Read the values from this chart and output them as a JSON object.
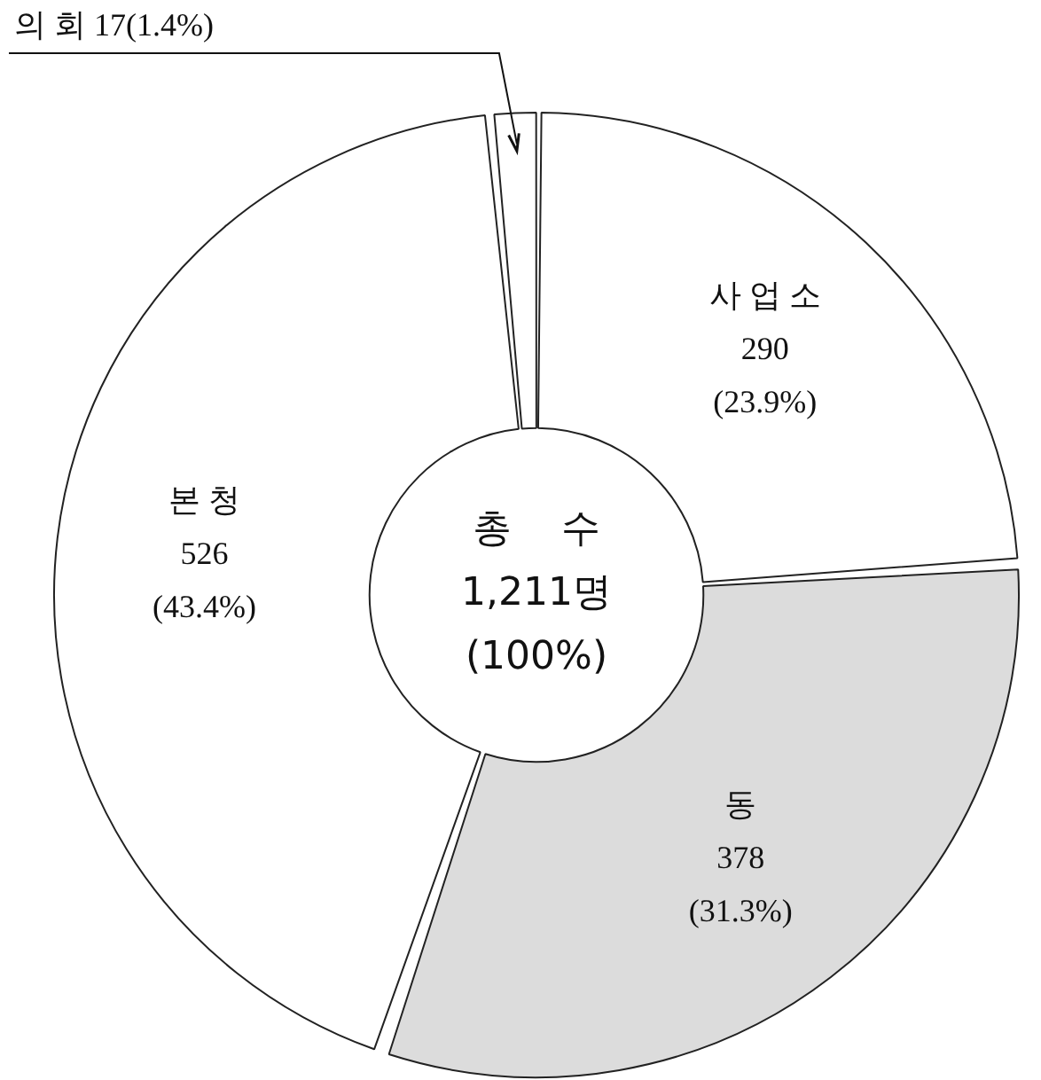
{
  "chart_data": {
    "type": "donut",
    "categories": [
      "사 업 소",
      "동",
      "본 청",
      "의 회"
    ],
    "values": [
      290,
      378,
      526,
      17
    ],
    "colors": [
      "#ffffff",
      "#dcdcdc",
      "#ffffff",
      "#ffffff"
    ],
    "value_labels": [
      "290\n(23.9%)",
      "378\n(31.3%)",
      "526\n(43.4%)",
      "17(1.4%)"
    ],
    "annotations": [
      "총    수",
      "1,211명",
      "(100%)"
    ],
    "legend": false
  }
}
